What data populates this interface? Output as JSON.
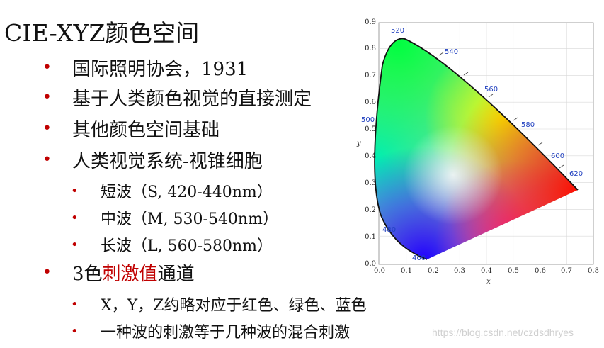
{
  "title": "CIE-XYZ颜色空间",
  "bullets": [
    {
      "text": "国际照明协会，1931"
    },
    {
      "text": "基于人类颜色视觉的直接测定"
    },
    {
      "text": "其他颜色空间基础"
    },
    {
      "text": "人类视觉系统-视锥细胞"
    }
  ],
  "cones": [
    {
      "text": "短波（S, 420-440nm）"
    },
    {
      "text": "中波（M, 530-540nm）"
    },
    {
      "text": "长波（L, 560-580nm）"
    }
  ],
  "stimulus": {
    "prefix": "3色",
    "highlight": "刺激值",
    "suffix": "通道"
  },
  "stimulus_sub": [
    {
      "text": "X，Y，Z约略对应于红色、绿色、蓝色"
    },
    {
      "text": "一种波的刺激等于几种波的混合刺激"
    }
  ],
  "diagram": {
    "xlabel": "x",
    "ylabel": "y",
    "x_ticks": [
      "0.0",
      "0.1",
      "0.2",
      "0.3",
      "0.4",
      "0.5",
      "0.6",
      "0.7",
      "0.8"
    ],
    "y_ticks": [
      "0.0",
      "0.1",
      "0.2",
      "0.3",
      "0.4",
      "0.5",
      "0.6",
      "0.7",
      "0.8",
      "0.9"
    ],
    "wavelengths": [
      "460",
      "480",
      "500",
      "520",
      "540",
      "560",
      "580",
      "600",
      "620"
    ],
    "label_color": "#1f3fbf"
  },
  "watermark": "https://blog.csdn.net/czdsdhryes"
}
